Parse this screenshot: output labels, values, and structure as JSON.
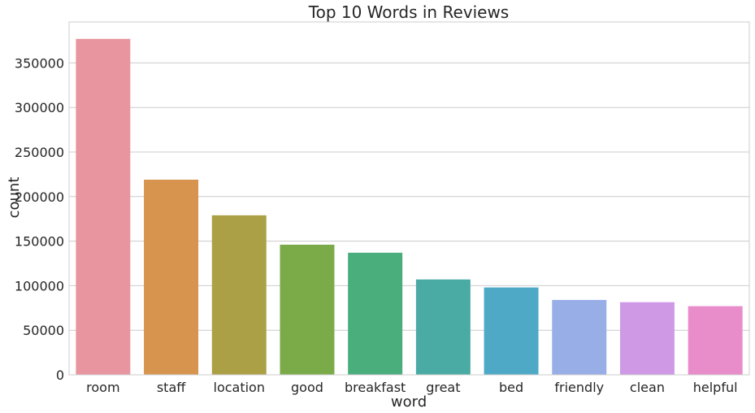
{
  "chart_data": {
    "type": "bar",
    "title": "Top 10 Words in Reviews",
    "xlabel": "word",
    "ylabel": "count",
    "categories": [
      "room",
      "staff",
      "location",
      "good",
      "breakfast",
      "great",
      "bed",
      "friendly",
      "clean",
      "helpful"
    ],
    "values": [
      377000,
      219000,
      179000,
      146000,
      137000,
      107000,
      98000,
      84000,
      81500,
      77000
    ],
    "colors": [
      "#e8959f",
      "#d6944f",
      "#aba045",
      "#7aab48",
      "#4aad7c",
      "#49aba3",
      "#4da9c6",
      "#97aee7",
      "#cf99e6",
      "#e88cca"
    ],
    "yticks": [
      0,
      50000,
      100000,
      150000,
      200000,
      250000,
      300000,
      350000
    ],
    "ytick_labels": [
      "0",
      "50000",
      "100000",
      "150000",
      "200000",
      "250000",
      "300000",
      "350000"
    ],
    "ylim": [
      0,
      396000
    ],
    "grid": true,
    "grid_axis": "y",
    "grid_color": "#cccccc",
    "frame_color": "#cccccc"
  }
}
